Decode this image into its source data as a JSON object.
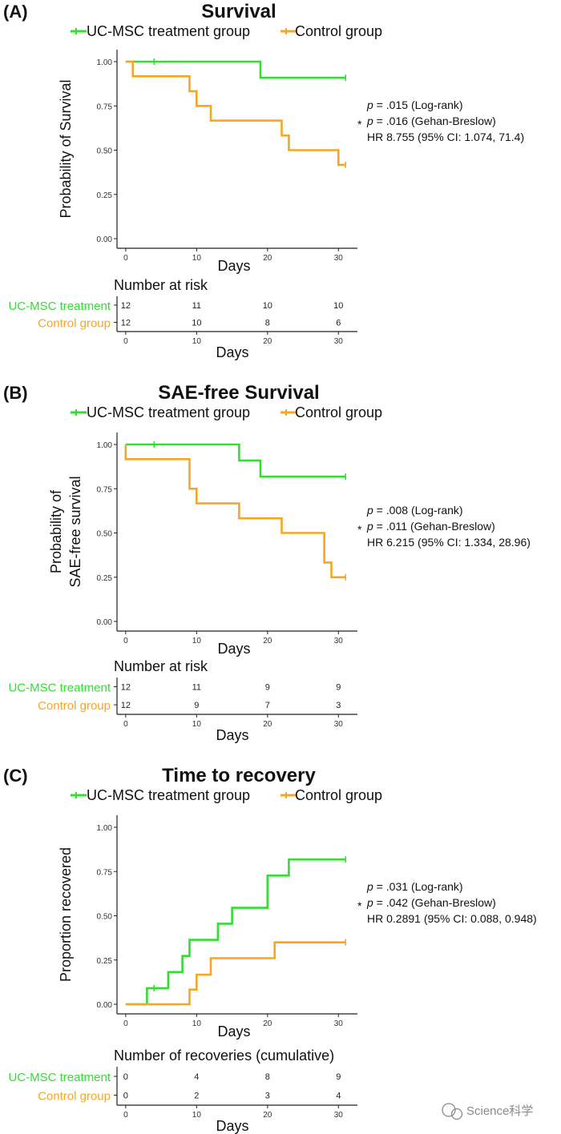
{
  "colors": {
    "treatment": "#33dd33",
    "control": "#f5a623",
    "axis": "#222222",
    "text": "#111111"
  },
  "legend": {
    "treatment": "UC-MSC treatment group",
    "control": "Control group"
  },
  "x_ticks": [
    "0",
    "10",
    "20",
    "30"
  ],
  "y_ticks": [
    "0.00",
    "0.25",
    "0.50",
    "0.75",
    "1.00"
  ],
  "watermark": "Science科学",
  "chart_data": [
    {
      "type": "line",
      "panel": "(A)",
      "title": "Survival",
      "xlabel": "Days",
      "ylabel": [
        "Probability of Survival"
      ],
      "xlim": [
        -1,
        32
      ],
      "ylim": [
        0,
        1
      ],
      "step": true,
      "series": [
        {
          "name": "UC-MSC treatment group",
          "key": "treatment",
          "points": [
            [
              0,
              1
            ],
            [
              19,
              1
            ],
            [
              19,
              0.909
            ],
            [
              31,
              0.909
            ]
          ],
          "censored": [
            [
              4,
              1
            ],
            [
              31,
              0.909
            ]
          ]
        },
        {
          "name": "Control group",
          "key": "control",
          "points": [
            [
              0,
              1
            ],
            [
              1,
              1
            ],
            [
              1,
              0.917
            ],
            [
              9,
              0.917
            ],
            [
              9,
              0.833
            ],
            [
              10,
              0.833
            ],
            [
              10,
              0.75
            ],
            [
              12,
              0.75
            ],
            [
              12,
              0.667
            ],
            [
              22,
              0.667
            ],
            [
              22,
              0.583
            ],
            [
              23,
              0.583
            ],
            [
              23,
              0.5
            ],
            [
              30,
              0.5
            ],
            [
              30,
              0.417
            ],
            [
              31,
              0.417
            ]
          ],
          "censored": [
            [
              31,
              0.417
            ]
          ]
        }
      ],
      "stats": {
        "p1": ".015",
        "t1": "(Log-rank)",
        "p2": ".016",
        "t2": "(Gehan-Breslow)",
        "hr": "HR 8.755 (95% CI: 1.074, 71.4)"
      },
      "risk_table": {
        "title": "Number at risk",
        "xlabel": "Days",
        "rows": [
          {
            "label": "UC-MSC treatment",
            "key": "treatment",
            "values": [
              "12",
              "11",
              "10",
              "10"
            ]
          },
          {
            "label": "Control group",
            "key": "control",
            "values": [
              "12",
              "10",
              "8",
              "6"
            ]
          }
        ]
      }
    },
    {
      "type": "line",
      "panel": "(B)",
      "title": "SAE-free Survival",
      "xlabel": "Days",
      "ylabel": [
        "Probability of",
        "SAE-free survival"
      ],
      "xlim": [
        -1,
        32
      ],
      "ylim": [
        0,
        1
      ],
      "step": true,
      "series": [
        {
          "name": "UC-MSC treatment group",
          "key": "treatment",
          "points": [
            [
              0,
              1
            ],
            [
              16,
              1
            ],
            [
              16,
              0.909
            ],
            [
              19,
              0.909
            ],
            [
              19,
              0.818
            ],
            [
              31,
              0.818
            ]
          ],
          "censored": [
            [
              4,
              1
            ],
            [
              31,
              0.818
            ]
          ]
        },
        {
          "name": "Control group",
          "key": "control",
          "points": [
            [
              0,
              1
            ],
            [
              0,
              0.917
            ],
            [
              9,
              0.917
            ],
            [
              9,
              0.75
            ],
            [
              10,
              0.75
            ],
            [
              10,
              0.667
            ],
            [
              16,
              0.667
            ],
            [
              16,
              0.583
            ],
            [
              22,
              0.583
            ],
            [
              22,
              0.5
            ],
            [
              28,
              0.5
            ],
            [
              28,
              0.333
            ],
            [
              29,
              0.333
            ],
            [
              29,
              0.25
            ],
            [
              31,
              0.25
            ]
          ],
          "censored": [
            [
              31,
              0.25
            ]
          ]
        }
      ],
      "stats": {
        "p1": ".008",
        "t1": "(Log-rank)",
        "p2": ".011",
        "t2": "(Gehan-Breslow)",
        "hr": "HR 6.215 (95% CI: 1.334, 28.96)"
      },
      "risk_table": {
        "title": "Number at risk",
        "xlabel": "Days",
        "rows": [
          {
            "label": "UC-MSC treatment",
            "key": "treatment",
            "values": [
              "12",
              "11",
              "9",
              "9"
            ]
          },
          {
            "label": "Control group",
            "key": "control",
            "values": [
              "12",
              "9",
              "7",
              "3"
            ]
          }
        ]
      }
    },
    {
      "type": "line",
      "panel": "(C)",
      "title": "Time to recovery",
      "xlabel": "Days",
      "ylabel": [
        "Proportion recovered"
      ],
      "xlim": [
        -1,
        32
      ],
      "ylim": [
        0,
        1
      ],
      "step": true,
      "series": [
        {
          "name": "UC-MSC treatment group",
          "key": "treatment",
          "points": [
            [
              0,
              0
            ],
            [
              3,
              0
            ],
            [
              3,
              0.091
            ],
            [
              6,
              0.091
            ],
            [
              6,
              0.182
            ],
            [
              8,
              0.182
            ],
            [
              8,
              0.273
            ],
            [
              9,
              0.273
            ],
            [
              9,
              0.364
            ],
            [
              13,
              0.364
            ],
            [
              13,
              0.455
            ],
            [
              15,
              0.455
            ],
            [
              15,
              0.545
            ],
            [
              20,
              0.545
            ],
            [
              20,
              0.727
            ],
            [
              23,
              0.727
            ],
            [
              23,
              0.818
            ],
            [
              31,
              0.818
            ]
          ],
          "censored": [
            [
              4,
              0.091
            ],
            [
              31,
              0.818
            ]
          ]
        },
        {
          "name": "Control group",
          "key": "control",
          "points": [
            [
              0,
              0
            ],
            [
              9,
              0
            ],
            [
              9,
              0.083
            ],
            [
              10,
              0.083
            ],
            [
              10,
              0.167
            ],
            [
              12,
              0.167
            ],
            [
              12,
              0.26
            ],
            [
              21,
              0.26
            ],
            [
              21,
              0.35
            ],
            [
              31,
              0.35
            ]
          ],
          "censored": [
            [
              31,
              0.35
            ]
          ]
        }
      ],
      "stats": {
        "p1": ".031",
        "t1": "(Log-rank)",
        "p2": ".042",
        "t2": "(Gehan-Breslow)",
        "hr": "HR 0.2891 (95% CI: 0.088, 0.948)"
      },
      "risk_table": {
        "title": "Number of recoveries (cumulative)",
        "xlabel": "Days",
        "rows": [
          {
            "label": "UC-MSC treatment",
            "key": "treatment",
            "values": [
              "0",
              "4",
              "8",
              "9"
            ]
          },
          {
            "label": "Control group",
            "key": "control",
            "values": [
              "0",
              "2",
              "3",
              "4"
            ]
          }
        ]
      }
    }
  ]
}
